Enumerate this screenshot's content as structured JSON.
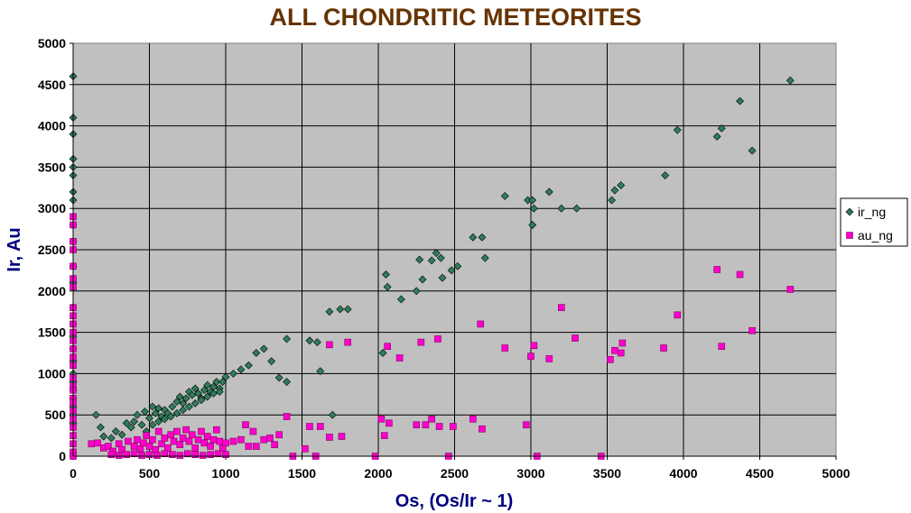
{
  "chart_data": {
    "type": "scatter",
    "title": "ALL CHONDRITIC METEORITES",
    "xlabel": "Os,  (Os/Ir ~ 1)",
    "ylabel": "Ir, Au",
    "xlim": [
      0,
      5000
    ],
    "ylim": [
      0,
      5000
    ],
    "xticks": [
      0,
      500,
      1000,
      1500,
      2000,
      2500,
      3000,
      3500,
      4000,
      4500,
      5000
    ],
    "yticks": [
      0,
      500,
      1000,
      1500,
      2000,
      2500,
      3000,
      3500,
      4000,
      4500,
      5000
    ],
    "grid": true,
    "legend_position": "right",
    "series": [
      {
        "name": "ir_ng",
        "color": "#2e7d5b",
        "marker": "diamond",
        "points": [
          [
            0,
            4600
          ],
          [
            0,
            4100
          ],
          [
            0,
            3900
          ],
          [
            0,
            3600
          ],
          [
            0,
            3500
          ],
          [
            0,
            3400
          ],
          [
            0,
            3200
          ],
          [
            0,
            3100
          ],
          [
            0,
            2800
          ],
          [
            0,
            2600
          ],
          [
            0,
            2300
          ],
          [
            0,
            2100
          ],
          [
            0,
            1800
          ],
          [
            0,
            1600
          ],
          [
            0,
            1450
          ],
          [
            0,
            1300
          ],
          [
            0,
            1150
          ],
          [
            0,
            1000
          ],
          [
            0,
            900
          ],
          [
            0,
            800
          ],
          [
            0,
            700
          ],
          [
            0,
            600
          ],
          [
            0,
            500
          ],
          [
            0,
            400
          ],
          [
            150,
            500
          ],
          [
            180,
            350
          ],
          [
            200,
            240
          ],
          [
            250,
            220
          ],
          [
            280,
            300
          ],
          [
            320,
            260
          ],
          [
            350,
            400
          ],
          [
            380,
            350
          ],
          [
            400,
            420
          ],
          [
            420,
            500
          ],
          [
            450,
            380
          ],
          [
            470,
            540
          ],
          [
            500,
            460
          ],
          [
            520,
            600
          ],
          [
            540,
            520
          ],
          [
            560,
            580
          ],
          [
            580,
            480
          ],
          [
            600,
            560
          ],
          [
            620,
            520
          ],
          [
            650,
            600
          ],
          [
            680,
            660
          ],
          [
            700,
            720
          ],
          [
            720,
            640
          ],
          [
            740,
            700
          ],
          [
            760,
            780
          ],
          [
            780,
            740
          ],
          [
            800,
            820
          ],
          [
            820,
            760
          ],
          [
            840,
            700
          ],
          [
            860,
            800
          ],
          [
            880,
            860
          ],
          [
            900,
            780
          ],
          [
            920,
            840
          ],
          [
            940,
            900
          ],
          [
            960,
            820
          ],
          [
            980,
            900
          ],
          [
            1000,
            960
          ],
          [
            480,
            300
          ],
          [
            520,
            380
          ],
          [
            560,
            420
          ],
          [
            600,
            450
          ],
          [
            640,
            480
          ],
          [
            680,
            520
          ],
          [
            720,
            560
          ],
          [
            760,
            600
          ],
          [
            800,
            640
          ],
          [
            840,
            680
          ],
          [
            880,
            720
          ],
          [
            920,
            760
          ],
          [
            960,
            780
          ],
          [
            1050,
            1000
          ],
          [
            1100,
            1050
          ],
          [
            1150,
            1100
          ],
          [
            1200,
            1250
          ],
          [
            1250,
            1300
          ],
          [
            1300,
            1150
          ],
          [
            1350,
            950
          ],
          [
            1400,
            900
          ],
          [
            1400,
            1420
          ],
          [
            1550,
            1400
          ],
          [
            1600,
            1380
          ],
          [
            1620,
            1030
          ],
          [
            1680,
            1750
          ],
          [
            1700,
            500
          ],
          [
            1750,
            1780
          ],
          [
            1800,
            1780
          ],
          [
            2030,
            1250
          ],
          [
            2050,
            2200
          ],
          [
            2060,
            2050
          ],
          [
            2150,
            1900
          ],
          [
            2250,
            2000
          ],
          [
            2270,
            2380
          ],
          [
            2290,
            2140
          ],
          [
            2350,
            2370
          ],
          [
            2380,
            2460
          ],
          [
            2410,
            2400
          ],
          [
            2420,
            2160
          ],
          [
            2480,
            2250
          ],
          [
            2520,
            2300
          ],
          [
            2620,
            2650
          ],
          [
            2680,
            2650
          ],
          [
            2700,
            2400
          ],
          [
            2830,
            3150
          ],
          [
            2980,
            3100
          ],
          [
            3010,
            3100
          ],
          [
            3010,
            2800
          ],
          [
            3020,
            3000
          ],
          [
            3120,
            3200
          ],
          [
            3200,
            3000
          ],
          [
            3300,
            3000
          ],
          [
            3530,
            3100
          ],
          [
            3550,
            3220
          ],
          [
            3590,
            3280
          ],
          [
            3880,
            3400
          ],
          [
            3960,
            3950
          ],
          [
            4220,
            3870
          ],
          [
            4250,
            3970
          ],
          [
            4370,
            4300
          ],
          [
            4450,
            3700
          ],
          [
            4700,
            4550
          ]
        ]
      },
      {
        "name": "au_ng",
        "color": "#ff00cc",
        "marker": "square",
        "points": [
          [
            0,
            2900
          ],
          [
            0,
            2800
          ],
          [
            0,
            2600
          ],
          [
            0,
            2500
          ],
          [
            0,
            2300
          ],
          [
            0,
            2150
          ],
          [
            0,
            2050
          ],
          [
            0,
            1800
          ],
          [
            0,
            1700
          ],
          [
            0,
            1600
          ],
          [
            0,
            1500
          ],
          [
            0,
            1400
          ],
          [
            0,
            1300
          ],
          [
            0,
            1200
          ],
          [
            0,
            1100
          ],
          [
            0,
            950
          ],
          [
            0,
            850
          ],
          [
            0,
            800
          ],
          [
            0,
            700
          ],
          [
            0,
            650
          ],
          [
            0,
            550
          ],
          [
            0,
            450
          ],
          [
            0,
            350
          ],
          [
            0,
            250
          ],
          [
            0,
            150
          ],
          [
            0,
            50
          ],
          [
            0,
            0
          ],
          [
            120,
            150
          ],
          [
            160,
            160
          ],
          [
            200,
            100
          ],
          [
            230,
            120
          ],
          [
            260,
            60
          ],
          [
            300,
            150
          ],
          [
            320,
            80
          ],
          [
            360,
            180
          ],
          [
            400,
            120
          ],
          [
            420,
            200
          ],
          [
            440,
            90
          ],
          [
            460,
            160
          ],
          [
            480,
            250
          ],
          [
            500,
            120
          ],
          [
            520,
            200
          ],
          [
            540,
            80
          ],
          [
            560,
            300
          ],
          [
            580,
            150
          ],
          [
            600,
            220
          ],
          [
            620,
            100
          ],
          [
            640,
            260
          ],
          [
            660,
            180
          ],
          [
            680,
            300
          ],
          [
            700,
            140
          ],
          [
            720,
            220
          ],
          [
            740,
            320
          ],
          [
            760,
            180
          ],
          [
            780,
            260
          ],
          [
            800,
            100
          ],
          [
            820,
            200
          ],
          [
            840,
            300
          ],
          [
            860,
            160
          ],
          [
            880,
            240
          ],
          [
            900,
            120
          ],
          [
            920,
            200
          ],
          [
            940,
            320
          ],
          [
            960,
            180
          ],
          [
            980,
            100
          ],
          [
            1000,
            160
          ],
          [
            250,
            20
          ],
          [
            300,
            10
          ],
          [
            350,
            20
          ],
          [
            400,
            30
          ],
          [
            450,
            10
          ],
          [
            500,
            20
          ],
          [
            550,
            10
          ],
          [
            600,
            30
          ],
          [
            650,
            20
          ],
          [
            700,
            10
          ],
          [
            750,
            30
          ],
          [
            800,
            20
          ],
          [
            850,
            10
          ],
          [
            900,
            20
          ],
          [
            950,
            30
          ],
          [
            1000,
            20
          ],
          [
            1050,
            180
          ],
          [
            1100,
            200
          ],
          [
            1130,
            380
          ],
          [
            1150,
            120
          ],
          [
            1180,
            300
          ],
          [
            1200,
            120
          ],
          [
            1250,
            200
          ],
          [
            1290,
            220
          ],
          [
            1320,
            140
          ],
          [
            1350,
            260
          ],
          [
            1400,
            480
          ],
          [
            1440,
            0
          ],
          [
            1520,
            90
          ],
          [
            1550,
            360
          ],
          [
            1590,
            0
          ],
          [
            1620,
            360
          ],
          [
            1680,
            230
          ],
          [
            1760,
            240
          ],
          [
            1800,
            1380
          ],
          [
            1680,
            1350
          ],
          [
            1980,
            0
          ],
          [
            2020,
            450
          ],
          [
            2040,
            250
          ],
          [
            2060,
            1330
          ],
          [
            2070,
            400
          ],
          [
            2140,
            1190
          ],
          [
            2250,
            380
          ],
          [
            2280,
            1380
          ],
          [
            2310,
            380
          ],
          [
            2350,
            450
          ],
          [
            2390,
            1420
          ],
          [
            2400,
            360
          ],
          [
            2460,
            0
          ],
          [
            2490,
            360
          ],
          [
            2620,
            450
          ],
          [
            2670,
            1600
          ],
          [
            2680,
            330
          ],
          [
            2830,
            1310
          ],
          [
            2970,
            380
          ],
          [
            3000,
            1210
          ],
          [
            3020,
            1340
          ],
          [
            3040,
            0
          ],
          [
            3120,
            1180
          ],
          [
            3200,
            1800
          ],
          [
            3290,
            1430
          ],
          [
            3460,
            0
          ],
          [
            3520,
            1170
          ],
          [
            3550,
            1280
          ],
          [
            3590,
            1250
          ],
          [
            3600,
            1370
          ],
          [
            3870,
            1310
          ],
          [
            3960,
            1710
          ],
          [
            4220,
            2260
          ],
          [
            4250,
            1330
          ],
          [
            4370,
            2200
          ],
          [
            4450,
            1520
          ],
          [
            4700,
            2020
          ]
        ]
      }
    ]
  }
}
